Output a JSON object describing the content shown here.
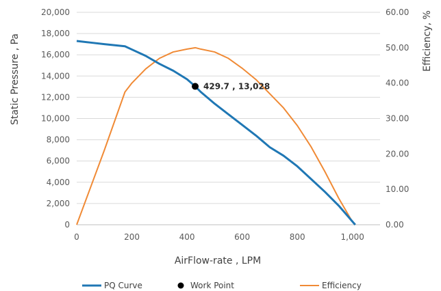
{
  "chart_data": {
    "type": "line",
    "title": "",
    "xlabel": "AirFlow-rate , LPM",
    "ylabel": "Static Pressure , Pa",
    "y2label": "Efficiency, %",
    "xlim": [
      0,
      1100
    ],
    "ylim": [
      0,
      20000
    ],
    "y2lim": [
      0,
      60
    ],
    "grid": true,
    "legend_position": "bottom",
    "x_ticks": [
      "0",
      "200",
      "400",
      "600",
      "800",
      "1,000"
    ],
    "x_tick_values": [
      0,
      200,
      400,
      600,
      800,
      1000
    ],
    "y_ticks": [
      "0",
      "2,000",
      "4,000",
      "6,000",
      "8,000",
      "10,000",
      "12,000",
      "14,000",
      "16,000",
      "18,000",
      "20,000"
    ],
    "y_tick_values": [
      0,
      2000,
      4000,
      6000,
      8000,
      10000,
      12000,
      14000,
      16000,
      18000,
      20000
    ],
    "y2_ticks": [
      "0.00",
      "10.00",
      "20.00",
      "30.00",
      "40.00",
      "50.00",
      "60.00"
    ],
    "y2_tick_values": [
      0,
      10,
      20,
      30,
      40,
      50,
      60
    ],
    "series": [
      {
        "name": "PQ Curve",
        "axis": "left",
        "color": "#1f77b4",
        "x": [
          0,
          50,
          100,
          175,
          200,
          250,
          300,
          350,
          400,
          429.7,
          450,
          500,
          550,
          600,
          650,
          700,
          750,
          800,
          850,
          900,
          950,
          1000,
          1010
        ],
        "y": [
          17300,
          17150,
          17000,
          16800,
          16500,
          15900,
          15150,
          14500,
          13700,
          13028,
          12500,
          11400,
          10400,
          9400,
          8400,
          7300,
          6500,
          5500,
          4300,
          3100,
          1800,
          300,
          0
        ]
      },
      {
        "name": "Work Point",
        "axis": "left",
        "color": "#000000",
        "x": [
          429.7
        ],
        "y": [
          13028
        ]
      },
      {
        "name": "Efficiency",
        "axis": "right",
        "color": "#f08a35",
        "x": [
          0,
          50,
          100,
          175,
          200,
          250,
          300,
          350,
          400,
          430,
          450,
          500,
          550,
          600,
          650,
          700,
          750,
          800,
          850,
          900,
          950,
          1000,
          1010
        ],
        "y": [
          0,
          10.5,
          21,
          37.5,
          40,
          44,
          47,
          48.8,
          49.6,
          50,
          49.6,
          48.8,
          47,
          44.2,
          41,
          37,
          33,
          28,
          22,
          15,
          7.5,
          0.8,
          0
        ]
      }
    ],
    "annotations": [
      {
        "text": "429.7 , 13,028",
        "x": 429.7,
        "y": 13028
      }
    ]
  }
}
